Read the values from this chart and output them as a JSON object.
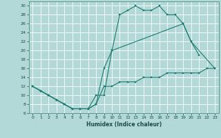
{
  "xlabel": "Humidex (Indice chaleur)",
  "bg_color": "#b2d8d8",
  "grid_color": "#ffffff",
  "line_color": "#1a7a6e",
  "xlim": [
    -0.5,
    23.5
  ],
  "ylim": [
    6,
    31
  ],
  "xticks": [
    0,
    1,
    2,
    3,
    4,
    5,
    6,
    7,
    8,
    9,
    10,
    11,
    12,
    13,
    14,
    15,
    16,
    17,
    18,
    19,
    20,
    21,
    22,
    23
  ],
  "yticks": [
    6,
    8,
    10,
    12,
    14,
    16,
    18,
    20,
    22,
    24,
    26,
    28,
    30
  ],
  "line1_x": [
    0,
    1,
    2,
    3,
    4,
    5,
    6,
    7,
    8,
    9,
    10,
    11,
    12,
    13,
    14,
    15,
    16,
    17,
    18,
    19,
    20,
    21
  ],
  "line1_y": [
    12,
    11,
    10,
    9,
    8,
    7,
    7,
    7,
    10,
    10,
    20,
    28,
    29,
    30,
    29,
    29,
    30,
    28,
    28,
    26,
    22,
    19
  ],
  "line2_x": [
    0,
    1,
    2,
    3,
    4,
    5,
    6,
    7,
    8,
    9,
    10,
    19,
    20,
    23
  ],
  "line2_y": [
    12,
    11,
    10,
    9,
    8,
    7,
    7,
    7,
    8,
    16,
    20,
    26,
    22,
    16
  ],
  "line3_x": [
    0,
    1,
    2,
    3,
    4,
    5,
    6,
    7,
    8,
    9,
    10,
    11,
    12,
    13,
    14,
    15,
    16,
    17,
    18,
    19,
    20,
    21,
    22,
    23
  ],
  "line3_y": [
    12,
    11,
    10,
    9,
    8,
    7,
    7,
    7,
    8,
    12,
    12,
    13,
    13,
    13,
    14,
    14,
    14,
    15,
    15,
    15,
    15,
    15,
    16,
    16
  ]
}
